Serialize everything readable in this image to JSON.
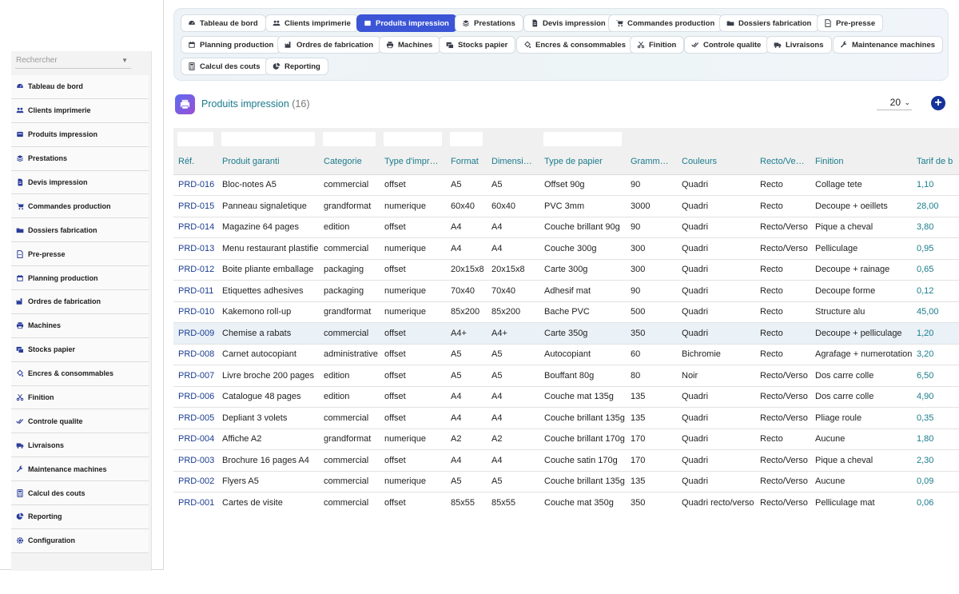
{
  "sidebar": {
    "search_placeholder": "Rechercher",
    "items": [
      {
        "label": "Tableau de bord",
        "icon": "dashboard-icon"
      },
      {
        "label": "Clients imprimerie",
        "icon": "users-icon"
      },
      {
        "label": "Produits impression",
        "icon": "box-icon"
      },
      {
        "label": "Prestations",
        "icon": "layers-icon"
      },
      {
        "label": "Devis impression",
        "icon": "document-icon"
      },
      {
        "label": "Commandes production",
        "icon": "cart-icon"
      },
      {
        "label": "Dossiers fabrication",
        "icon": "folder-icon"
      },
      {
        "label": "Pre-presse",
        "icon": "file-icon"
      },
      {
        "label": "Planning production",
        "icon": "calendar-icon"
      },
      {
        "label": "Ordres de fabrication",
        "icon": "factory-icon"
      },
      {
        "label": "Machines",
        "icon": "printer-icon"
      },
      {
        "label": "Stocks papier",
        "icon": "stack-icon"
      },
      {
        "label": "Encres & consommables",
        "icon": "fill-icon"
      },
      {
        "label": "Finition",
        "icon": "scissors-icon"
      },
      {
        "label": "Controle qualite",
        "icon": "check-double-icon"
      },
      {
        "label": "Livraisons",
        "icon": "truck-icon"
      },
      {
        "label": "Maintenance machines",
        "icon": "wrench-icon"
      },
      {
        "label": "Calcul des couts",
        "icon": "calculator-icon"
      },
      {
        "label": "Reporting",
        "icon": "pie-chart-icon"
      },
      {
        "label": "Configuration",
        "icon": "gear-icon"
      }
    ]
  },
  "topnav": {
    "tabs": [
      {
        "label": "Tableau de bord",
        "icon": "dashboard-icon"
      },
      {
        "label": "Clients imprimerie",
        "icon": "users-icon"
      },
      {
        "label": "Produits impression",
        "icon": "box-icon",
        "active": true
      },
      {
        "label": "Prestations",
        "icon": "layers-icon"
      },
      {
        "label": "Devis impression",
        "icon": "document-icon"
      },
      {
        "label": "Commandes production",
        "icon": "cart-icon"
      },
      {
        "label": "Dossiers fabrication",
        "icon": "folder-icon"
      },
      {
        "label": "Pre-presse",
        "icon": "file-icon"
      },
      {
        "label": "Planning production",
        "icon": "calendar-icon"
      },
      {
        "label": "Ordres de fabrication",
        "icon": "factory-icon"
      },
      {
        "label": "Machines",
        "icon": "printer-icon"
      },
      {
        "label": "Stocks papier",
        "icon": "stack-icon"
      },
      {
        "label": "Encres & consommables",
        "icon": "fill-icon"
      },
      {
        "label": "Finition",
        "icon": "scissors-icon"
      },
      {
        "label": "Controle qualite",
        "icon": "check-double-icon"
      },
      {
        "label": "Livraisons",
        "icon": "truck-icon"
      },
      {
        "label": "Maintenance machines",
        "icon": "wrench-icon"
      },
      {
        "label": "Calcul des couts",
        "icon": "calculator-icon"
      },
      {
        "label": "Reporting",
        "icon": "pie-chart-icon"
      }
    ]
  },
  "page": {
    "title": "Produits impression",
    "count": "(16)",
    "page_size": "20",
    "add_icon": "plus-circle-icon",
    "accent": "#1a7c8c",
    "active_tab_color": "#3b55d6"
  },
  "table": {
    "columns": [
      "Réf.",
      "Produit garanti",
      "Categorie",
      "Type d'impre...",
      "Format",
      "Dimensions",
      "Type de papier",
      "Grammage",
      "Couleurs",
      "Recto/Verso",
      "Finition",
      "Tarif de b"
    ],
    "rows": [
      [
        "PRD-016",
        "Bloc-notes A5",
        "commercial",
        "offset",
        "A5",
        "A5",
        "Offset 90g",
        "90",
        "Quadri",
        "Recto",
        "Collage tete",
        "1,10"
      ],
      [
        "PRD-015",
        "Panneau signaletique",
        "grandformat",
        "numerique",
        "60x40",
        "60x40",
        "PVC 3mm",
        "3000",
        "Quadri",
        "Recto",
        "Decoupe + oeillets",
        "28,00"
      ],
      [
        "PRD-014",
        "Magazine 64 pages",
        "edition",
        "offset",
        "A4",
        "A4",
        "Couche brillant 90g",
        "90",
        "Quadri",
        "Recto/Verso",
        "Pique a cheval",
        "3,80"
      ],
      [
        "PRD-013",
        "Menu restaurant plastifie",
        "commercial",
        "numerique",
        "A4",
        "A4",
        "Couche 300g",
        "300",
        "Quadri",
        "Recto/Verso",
        "Pelliculage",
        "0,95"
      ],
      [
        "PRD-012",
        "Boite pliante emballage",
        "packaging",
        "offset",
        "20x15x8",
        "20x15x8",
        "Carte 300g",
        "300",
        "Quadri",
        "Recto",
        "Decoupe + rainage",
        "0,65"
      ],
      [
        "PRD-011",
        "Etiquettes adhesives",
        "packaging",
        "numerique",
        "70x40",
        "70x40",
        "Adhesif mat",
        "90",
        "Quadri",
        "Recto",
        "Decoupe forme",
        "0,12"
      ],
      [
        "PRD-010",
        "Kakemono roll-up",
        "grandformat",
        "numerique",
        "85x200",
        "85x200",
        "Bache PVC",
        "500",
        "Quadri",
        "Recto",
        "Structure alu",
        "45,00"
      ],
      [
        "PRD-009",
        "Chemise a rabats",
        "commercial",
        "offset",
        "A4+",
        "A4+",
        "Carte 350g",
        "350",
        "Quadri",
        "Recto",
        "Decoupe + pelliculage",
        "1,20"
      ],
      [
        "PRD-008",
        "Carnet autocopiant",
        "administrative",
        "offset",
        "A5",
        "A5",
        "Autocopiant",
        "60",
        "Bichromie",
        "Recto",
        "Agrafage + numerotation",
        "3,20"
      ],
      [
        "PRD-007",
        "Livre broche 200 pages",
        "edition",
        "offset",
        "A5",
        "A5",
        "Bouffant 80g",
        "80",
        "Noir",
        "Recto/Verso",
        "Dos carre colle",
        "6,50"
      ],
      [
        "PRD-006",
        "Catalogue 48 pages",
        "edition",
        "offset",
        "A4",
        "A4",
        "Couche mat 135g",
        "135",
        "Quadri",
        "Recto/Verso",
        "Dos carre colle",
        "4,90"
      ],
      [
        "PRD-005",
        "Depliant 3 volets",
        "commercial",
        "offset",
        "A4",
        "A4",
        "Couche brillant 135g",
        "135",
        "Quadri",
        "Recto/Verso",
        "Pliage roule",
        "0,35"
      ],
      [
        "PRD-004",
        "Affiche A2",
        "grandformat",
        "numerique",
        "A2",
        "A2",
        "Couche brillant 170g",
        "170",
        "Quadri",
        "Recto",
        "Aucune",
        "1,80"
      ],
      [
        "PRD-003",
        "Brochure 16 pages A4",
        "commercial",
        "offset",
        "A4",
        "A4",
        "Couche satin 170g",
        "170",
        "Quadri",
        "Recto/Verso",
        "Pique a cheval",
        "2,30"
      ],
      [
        "PRD-002",
        "Flyers A5",
        "commercial",
        "numerique",
        "A5",
        "A5",
        "Couche brillant 135g",
        "135",
        "Quadri",
        "Recto/Verso",
        "Aucune",
        "0,09"
      ],
      [
        "PRD-001",
        "Cartes de visite",
        "commercial",
        "offset",
        "85x55",
        "85x55",
        "Couche mat 350g",
        "350",
        "Quadri recto/verso",
        "Recto/Verso",
        "Pelliculage mat",
        "0,06"
      ]
    ],
    "highlighted_row": "PRD-009"
  }
}
